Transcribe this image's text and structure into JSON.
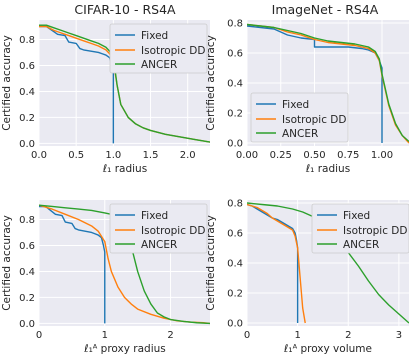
{
  "chart_data": [
    {
      "type": "line",
      "title": "CIFAR-10 - RS4A",
      "xlabel": "ℓ₁ radius",
      "ylabel": "Certified accuracy",
      "xlim": [
        0,
        2.3
      ],
      "ylim": [
        -0.02,
        0.95
      ],
      "xticks": [
        0,
        0.5,
        1.0,
        1.5,
        2.0
      ],
      "xtick_labels": [
        "0.0",
        "0.5",
        "1.0",
        "1.5",
        "2.0"
      ],
      "yticks": [
        0,
        0.2,
        0.4,
        0.6,
        0.8
      ],
      "ytick_labels": [
        "0.0",
        "0.2",
        "0.4",
        "0.6",
        "0.8"
      ],
      "grid": true,
      "legend_position": "top-right",
      "series": [
        {
          "name": "Fixed",
          "color": "#1f77b4",
          "x": [
            0,
            0.1,
            0.2,
            0.25,
            0.35,
            0.4,
            0.5,
            0.55,
            0.6,
            0.7,
            0.8,
            0.85,
            0.9,
            0.95,
            0.98,
            1.0,
            1.0,
            1.0
          ],
          "y": [
            0.9,
            0.9,
            0.86,
            0.84,
            0.83,
            0.78,
            0.77,
            0.73,
            0.72,
            0.71,
            0.7,
            0.69,
            0.68,
            0.66,
            0.6,
            0.55,
            0.0,
            0.0
          ]
        },
        {
          "name": "Isotropic DD",
          "color": "#ff7f0e",
          "x": [
            0,
            0.1,
            0.2,
            0.3,
            0.4,
            0.5,
            0.6,
            0.7,
            0.8,
            0.9,
            0.95,
            1.0,
            1.05,
            1.1,
            1.2,
            1.3,
            1.4,
            1.5,
            1.7,
            1.9,
            2.1,
            2.3
          ],
          "y": [
            0.9,
            0.9,
            0.87,
            0.85,
            0.83,
            0.81,
            0.79,
            0.77,
            0.75,
            0.72,
            0.69,
            0.63,
            0.45,
            0.3,
            0.2,
            0.15,
            0.12,
            0.1,
            0.07,
            0.05,
            0.03,
            0.01
          ]
        },
        {
          "name": "ANCER",
          "color": "#2ca02c",
          "x": [
            0,
            0.1,
            0.2,
            0.3,
            0.4,
            0.5,
            0.6,
            0.7,
            0.8,
            0.9,
            0.95,
            1.0,
            1.05,
            1.1,
            1.2,
            1.3,
            1.4,
            1.5,
            1.7,
            1.9,
            2.1,
            2.3
          ],
          "y": [
            0.91,
            0.91,
            0.89,
            0.87,
            0.85,
            0.83,
            0.81,
            0.79,
            0.77,
            0.74,
            0.71,
            0.66,
            0.45,
            0.3,
            0.2,
            0.15,
            0.12,
            0.1,
            0.07,
            0.05,
            0.03,
            0.01
          ]
        }
      ]
    },
    {
      "type": "line",
      "title": "ImageNet - RS4A",
      "xlabel": "ℓ₁ radius",
      "ylabel": "Certified accuracy",
      "xlim": [
        0,
        1.2
      ],
      "ylim": [
        -0.02,
        0.82
      ],
      "xticks": [
        0,
        0.25,
        0.5,
        0.75,
        1.0
      ],
      "xtick_labels": [
        "0.00",
        "0.25",
        "0.50",
        "0.75",
        "1.00"
      ],
      "yticks": [
        0,
        0.2,
        0.4,
        0.6,
        0.8
      ],
      "ytick_labels": [
        "0.0",
        "0.2",
        "0.4",
        "0.6",
        "0.8"
      ],
      "grid": true,
      "legend_position": "bottom-left",
      "series": [
        {
          "name": "Fixed",
          "color": "#1f77b4",
          "x": [
            0,
            0.1,
            0.2,
            0.25,
            0.3,
            0.4,
            0.5,
            0.5,
            0.6,
            0.75,
            0.85,
            0.9,
            0.95,
            0.98,
            1.0,
            1.0
          ],
          "y": [
            0.78,
            0.77,
            0.76,
            0.74,
            0.72,
            0.7,
            0.69,
            0.64,
            0.64,
            0.64,
            0.63,
            0.62,
            0.6,
            0.55,
            0.5,
            0.0
          ]
        },
        {
          "name": "Isotropic DD",
          "color": "#ff7f0e",
          "x": [
            0,
            0.1,
            0.2,
            0.3,
            0.4,
            0.5,
            0.6,
            0.7,
            0.8,
            0.9,
            0.95,
            0.98,
            1.0,
            1.05,
            1.1,
            1.15,
            1.2
          ],
          "y": [
            0.79,
            0.78,
            0.77,
            0.74,
            0.72,
            0.69,
            0.67,
            0.66,
            0.65,
            0.63,
            0.6,
            0.55,
            0.45,
            0.25,
            0.12,
            0.05,
            0.0
          ]
        },
        {
          "name": "ANCER",
          "color": "#2ca02c",
          "x": [
            0,
            0.1,
            0.2,
            0.3,
            0.4,
            0.5,
            0.6,
            0.7,
            0.8,
            0.9,
            0.95,
            0.98,
            1.0,
            1.05,
            1.1,
            1.15,
            1.2
          ],
          "y": [
            0.79,
            0.78,
            0.77,
            0.75,
            0.73,
            0.7,
            0.68,
            0.67,
            0.66,
            0.64,
            0.61,
            0.56,
            0.46,
            0.26,
            0.13,
            0.05,
            0.01
          ]
        }
      ]
    },
    {
      "type": "line",
      "title": "",
      "xlabel": "ℓ₁ᴬ proxy radius",
      "ylabel": "Certified accuracy",
      "xlim": [
        0,
        2.6
      ],
      "ylim": [
        -0.02,
        0.95
      ],
      "xticks": [
        0,
        1,
        2
      ],
      "xtick_labels": [
        "0",
        "1",
        "2"
      ],
      "yticks": [
        0,
        0.2,
        0.4,
        0.6,
        0.8
      ],
      "ytick_labels": [
        "0.0",
        "0.2",
        "0.4",
        "0.6",
        "0.8"
      ],
      "grid": true,
      "legend_position": "top-right",
      "series": [
        {
          "name": "Fixed",
          "color": "#1f77b4",
          "x": [
            0,
            0.1,
            0.2,
            0.25,
            0.35,
            0.4,
            0.5,
            0.55,
            0.6,
            0.7,
            0.8,
            0.85,
            0.9,
            0.95,
            0.98,
            1.0,
            1.0,
            1.0
          ],
          "y": [
            0.9,
            0.9,
            0.86,
            0.84,
            0.83,
            0.78,
            0.77,
            0.73,
            0.72,
            0.71,
            0.7,
            0.69,
            0.68,
            0.66,
            0.6,
            0.55,
            0.0,
            0.0
          ]
        },
        {
          "name": "Isotropic DD",
          "color": "#ff7f0e",
          "x": [
            0,
            0.2,
            0.4,
            0.6,
            0.8,
            0.9,
            1.0,
            1.05,
            1.1,
            1.2,
            1.3,
            1.4,
            1.5,
            1.7,
            1.9,
            2.1,
            2.3,
            2.5,
            2.6
          ],
          "y": [
            0.91,
            0.88,
            0.84,
            0.8,
            0.75,
            0.71,
            0.63,
            0.5,
            0.4,
            0.28,
            0.2,
            0.15,
            0.11,
            0.07,
            0.04,
            0.02,
            0.01,
            0.005,
            0.0
          ]
        },
        {
          "name": "ANCER",
          "color": "#2ca02c",
          "x": [
            0,
            0.2,
            0.4,
            0.6,
            0.8,
            1.0,
            1.1,
            1.2,
            1.3,
            1.35,
            1.4,
            1.5,
            1.6,
            1.7,
            1.8,
            1.9,
            2.0,
            2.2,
            2.4,
            2.6
          ],
          "y": [
            0.91,
            0.9,
            0.89,
            0.88,
            0.87,
            0.85,
            0.84,
            0.83,
            0.8,
            0.75,
            0.6,
            0.4,
            0.25,
            0.15,
            0.08,
            0.05,
            0.03,
            0.015,
            0.005,
            0.0
          ]
        }
      ]
    },
    {
      "type": "line",
      "title": "",
      "xlabel": "ℓ₁ᴬ proxy volume",
      "ylabel": "Certified accuracy",
      "xlim": [
        0,
        3.2
      ],
      "ylim": [
        -0.02,
        0.82
      ],
      "xticks": [
        0,
        1,
        2,
        3
      ],
      "xtick_labels": [
        "0",
        "1",
        "2",
        "3"
      ],
      "yticks": [
        0,
        0.2,
        0.4,
        0.6,
        0.8
      ],
      "ytick_labels": [
        "0.0",
        "0.2",
        "0.4",
        "0.6",
        "0.8"
      ],
      "grid": true,
      "legend_position": "top-right",
      "series": [
        {
          "name": "Fixed",
          "color": "#1f77b4",
          "x": [
            0,
            0.1,
            0.2,
            0.3,
            0.4,
            0.5,
            0.6,
            0.7,
            0.8,
            0.9,
            0.95,
            0.98,
            1.0,
            1.0
          ],
          "y": [
            0.79,
            0.78,
            0.76,
            0.74,
            0.72,
            0.7,
            0.69,
            0.67,
            0.65,
            0.63,
            0.6,
            0.55,
            0.5,
            0.0
          ]
        },
        {
          "name": "Isotropic DD",
          "color": "#ff7f0e",
          "x": [
            0,
            0.1,
            0.2,
            0.3,
            0.4,
            0.5,
            0.6,
            0.7,
            0.8,
            0.9,
            0.95,
            1.0,
            1.05,
            1.1,
            1.15
          ],
          "y": [
            0.79,
            0.78,
            0.77,
            0.75,
            0.73,
            0.7,
            0.68,
            0.66,
            0.64,
            0.62,
            0.58,
            0.5,
            0.3,
            0.1,
            0.0
          ]
        },
        {
          "name": "ANCER",
          "color": "#2ca02c",
          "x": [
            0,
            0.3,
            0.6,
            0.9,
            1.1,
            1.3,
            1.5,
            1.7,
            1.9,
            2.0,
            2.2,
            2.4,
            2.6,
            2.8,
            3.0,
            3.1,
            3.2
          ],
          "y": [
            0.8,
            0.79,
            0.78,
            0.76,
            0.74,
            0.71,
            0.67,
            0.6,
            0.52,
            0.47,
            0.38,
            0.28,
            0.19,
            0.12,
            0.06,
            0.03,
            0.0
          ]
        }
      ]
    }
  ]
}
